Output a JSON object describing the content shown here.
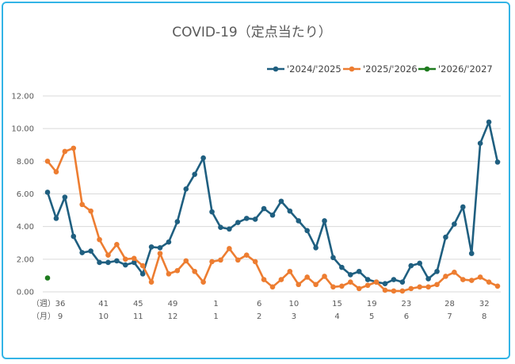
{
  "chart_data": {
    "type": "line",
    "title": "COVID-19（定点当たり）",
    "ylim": [
      0,
      12
    ],
    "yticks": [
      "0.00",
      "2.00",
      "4.00",
      "6.00",
      "8.00",
      "10.00",
      "12.00"
    ],
    "grid": true,
    "legend_position": "top-right",
    "x_row_labels": {
      "week": "（週）",
      "month": "（月）"
    },
    "x_week_ticks": [
      {
        "i": 0,
        "label": "36"
      },
      {
        "i": 5,
        "label": "41"
      },
      {
        "i": 9,
        "label": "45"
      },
      {
        "i": 13,
        "label": "49"
      },
      {
        "i": 18,
        "label": "1"
      },
      {
        "i": 23,
        "label": "6"
      },
      {
        "i": 27,
        "label": "10"
      },
      {
        "i": 32,
        "label": "15"
      },
      {
        "i": 36,
        "label": "19"
      },
      {
        "i": 40,
        "label": "23"
      },
      {
        "i": 45,
        "label": "28"
      },
      {
        "i": 49,
        "label": "32"
      }
    ],
    "x_month_ticks": [
      {
        "i": 0,
        "label": "9"
      },
      {
        "i": 5,
        "label": "10"
      },
      {
        "i": 9,
        "label": "11"
      },
      {
        "i": 13,
        "label": "12"
      },
      {
        "i": 18,
        "label": "1"
      },
      {
        "i": 23,
        "label": "2"
      },
      {
        "i": 27,
        "label": "3"
      },
      {
        "i": 32,
        "label": "4"
      },
      {
        "i": 36,
        "label": "5"
      },
      {
        "i": 40,
        "label": "6"
      },
      {
        "i": 45,
        "label": "7"
      },
      {
        "i": 49,
        "label": "8"
      }
    ],
    "series": [
      {
        "name": "'2024/'2025",
        "color": "#1f5f80",
        "values": [
          6.1,
          4.5,
          5.8,
          3.4,
          2.4,
          2.5,
          1.8,
          1.8,
          1.9,
          1.65,
          1.8,
          1.1,
          2.75,
          2.7,
          3.05,
          4.3,
          6.3,
          7.2,
          8.2,
          4.9,
          3.95,
          3.85,
          4.25,
          4.5,
          4.45,
          5.1,
          4.7,
          5.55,
          4.95,
          4.35,
          3.75,
          2.7,
          4.35,
          2.1,
          1.5,
          1.05,
          1.25,
          0.75,
          0.6,
          0.5,
          0.75,
          0.6,
          1.6,
          1.75,
          0.8,
          1.25,
          3.35,
          4.15,
          5.2,
          2.35,
          9.1,
          10.4,
          7.95
        ]
      },
      {
        "name": "'2025/'2026",
        "color": "#ed7d31",
        "values": [
          8.0,
          7.35,
          8.6,
          8.8,
          5.35,
          4.95,
          3.2,
          2.25,
          2.9,
          2.0,
          2.05,
          1.6,
          0.6,
          2.35,
          1.1,
          1.3,
          1.9,
          1.25,
          0.6,
          1.85,
          1.95,
          2.65,
          1.95,
          2.25,
          1.85,
          0.75,
          0.3,
          0.75,
          1.25,
          0.45,
          0.9,
          0.45,
          0.95,
          0.3,
          0.35,
          0.6,
          0.2,
          0.4,
          0.6,
          0.1,
          0.05,
          0.05,
          0.2,
          0.3,
          0.3,
          0.45,
          0.95,
          1.2,
          0.75,
          0.7,
          0.9,
          0.6,
          0.35
        ]
      },
      {
        "name": "'2026/'2027",
        "color": "#1e7b1e",
        "values": [
          0.85
        ]
      }
    ]
  }
}
